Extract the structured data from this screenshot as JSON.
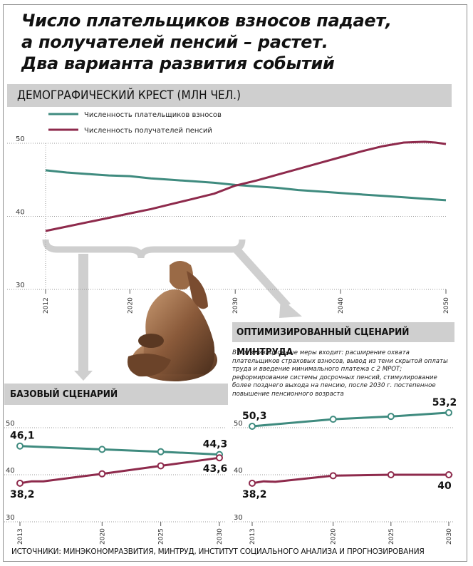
{
  "headline": [
    "Число плательщиков взносов падает,",
    "а получателей пенсий – растет.",
    "Два варианта развития событий"
  ],
  "source": "ИСТОЧНИКИ: МИНЭКОНОМРАЗВИТИЯ, МИНТРУД, ИНСТИТУТ СОЦИАЛЬНОГО АНАЛИЗА И ПРОГНОЗИРОВАНИЯ",
  "colors": {
    "payers": "#3f8b7f",
    "pensioners": "#8e2a4c",
    "bar": "#cfcfcf"
  },
  "image": {
    "icon": "pensioner-statue-image"
  },
  "chart_data": [
    {
      "id": "main",
      "type": "line",
      "title": "ДЕМОГРАФИЧЕСКИЙ КРЕСТ (МЛН ЧЕЛ.)",
      "ylim": [
        30,
        50
      ],
      "yticks": [
        "30",
        "40",
        "50"
      ],
      "xlim": [
        2012,
        2050
      ],
      "xticks": [
        "2012",
        "2020",
        "2030",
        "2040",
        "2050"
      ],
      "series": [
        {
          "name": "Численность плательщиков взносов",
          "key": "payers",
          "x": [
            2012,
            2014,
            2016,
            2018,
            2020,
            2022,
            2024,
            2026,
            2028,
            2030,
            2032,
            2034,
            2036,
            2038,
            2040,
            2042,
            2044,
            2046,
            2048,
            2050
          ],
          "values": [
            46.3,
            46.0,
            45.8,
            45.6,
            45.5,
            45.2,
            45.0,
            44.8,
            44.6,
            44.3,
            44.1,
            43.9,
            43.6,
            43.4,
            43.2,
            43.0,
            42.8,
            42.6,
            42.4,
            42.2
          ]
        },
        {
          "name": "Численность получателей пенсий",
          "key": "pensioners",
          "x": [
            2012,
            2014,
            2016,
            2018,
            2020,
            2022,
            2024,
            2026,
            2028,
            2030,
            2032,
            2034,
            2036,
            2038,
            2040,
            2042,
            2044,
            2046,
            2048,
            2049,
            2050
          ],
          "values": [
            38.0,
            38.6,
            39.2,
            39.8,
            40.4,
            41.0,
            41.7,
            42.4,
            43.1,
            44.2,
            44.9,
            45.7,
            46.5,
            47.3,
            48.1,
            48.9,
            49.6,
            50.1,
            50.2,
            50.1,
            49.9
          ]
        }
      ]
    },
    {
      "id": "base",
      "type": "line",
      "title": "БАЗОВЫЙ СЦЕНАРИЙ",
      "ylim": [
        30,
        50
      ],
      "yticks": [
        "30",
        "40",
        "50"
      ],
      "xlim": [
        2013,
        2030
      ],
      "xticks": [
        "2013",
        "2020",
        "2025",
        "2030"
      ],
      "series": [
        {
          "key": "payers",
          "x": [
            2013,
            2020,
            2025,
            2030
          ],
          "values": [
            46.1,
            45.4,
            44.9,
            44.3
          ],
          "labels": [
            {
              "index": 0,
              "text": "46,1"
            },
            {
              "index": 3,
              "text": "44,3"
            }
          ]
        },
        {
          "key": "pensioners",
          "x": [
            2013,
            2014,
            2015,
            2020,
            2025,
            2030
          ],
          "values": [
            38.2,
            38.6,
            38.6,
            40.2,
            41.9,
            43.6
          ],
          "markers": [
            0,
            3,
            4,
            5
          ],
          "labels": [
            {
              "index": 0,
              "text": "38,2"
            },
            {
              "index": 5,
              "text": "43,6"
            }
          ]
        }
      ]
    },
    {
      "id": "opt",
      "type": "line",
      "title": "ОПТИМИЗИРОВАННЫЙ СЦЕНАРИЙ МИНТРУДА",
      "note": "В оптимизационные меры входит: расширение охвата плательщиков страховых взносов, вывод из тени скрытой оплаты труда и введение минимального платежа с 2 МРОТ; реформирование системы досрочных пенсий, стимулирование более позднего выхода на пенсию, после 2030 г. постепенное повышение пенсионного возраста",
      "ylim": [
        30,
        50
      ],
      "yticks": [
        "30",
        "40",
        "50"
      ],
      "xlim": [
        2013,
        2030
      ],
      "xticks": [
        "2013",
        "2020",
        "2025",
        "2030"
      ],
      "series": [
        {
          "key": "payers",
          "x": [
            2013,
            2020,
            2025,
            2030
          ],
          "values": [
            50.3,
            51.8,
            52.4,
            53.2
          ],
          "labels": [
            {
              "index": 0,
              "text": "50,3"
            },
            {
              "index": 3,
              "text": "53,2"
            }
          ]
        },
        {
          "key": "pensioners",
          "x": [
            2013,
            2014,
            2015,
            2020,
            2025,
            2030
          ],
          "values": [
            38.2,
            38.6,
            38.5,
            39.8,
            40.0,
            40.0
          ],
          "markers": [
            0,
            3,
            4,
            5
          ],
          "labels": [
            {
              "index": 0,
              "text": "38,2"
            },
            {
              "index": 5,
              "text": "40"
            }
          ]
        }
      ]
    }
  ]
}
